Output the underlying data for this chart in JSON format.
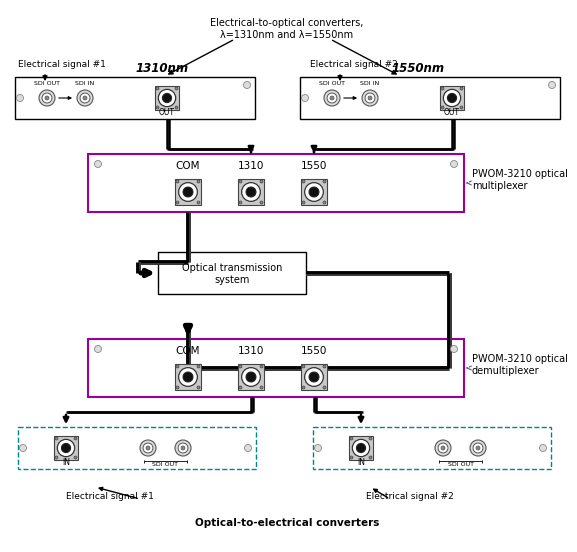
{
  "bg_color": "#ffffff",
  "top_annotation": "Electrical-to-optical converters,\nλ=1310nm and λ=1550nm",
  "sig1_label": "Electrical signal #1",
  "sig2_label": "Electrical signal #2",
  "sig1_label_bottom": "Electrical signal #1",
  "sig2_label_bottom": "Electrical signal #2",
  "label_1310nm": "1310nm",
  "label_1550nm": "1550nm",
  "mux_label": "PWOM-3210 optical\nmultiplexer",
  "demux_label": "PWOM-3210 optical\ndemultiplexer",
  "optical_trans": "Optical transmission\nsystem",
  "oe_label": "Optical-to-electrical converters",
  "com_label": "COM",
  "label_1310": "1310",
  "label_1550": "1550",
  "sdi_out": "SDI OUT",
  "sdi_in": "SDI IN",
  "out_label": "OUT",
  "in_label": "IN",
  "sdi_out2": "SDI OUT"
}
